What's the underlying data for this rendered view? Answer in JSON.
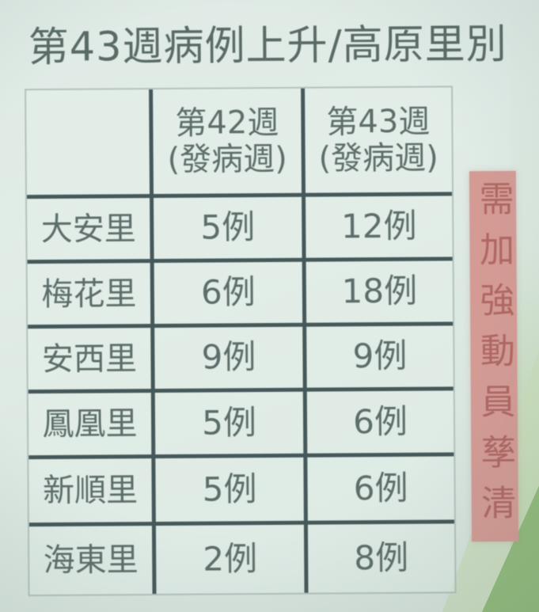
{
  "title": "第43週病例上升/高原里別",
  "table": {
    "header": {
      "col1": "",
      "col2": {
        "line1": "第42週",
        "line2": "(發病週)"
      },
      "col3": {
        "line1": "第43週",
        "line2": "(發病週)"
      }
    },
    "rows": [
      {
        "name": "大安里",
        "w42": "5例",
        "w43": "12例"
      },
      {
        "name": "梅花里",
        "w42": "6例",
        "w43": "18例"
      },
      {
        "name": "安西里",
        "w42": "9例",
        "w43": "9例"
      },
      {
        "name": "鳳凰里",
        "w42": "5例",
        "w43": "6例"
      },
      {
        "name": "新順里",
        "w42": "5例",
        "w43": "6例"
      },
      {
        "name": "海東里",
        "w42": "2例",
        "w43": "8例"
      }
    ]
  },
  "side_banner": {
    "text": "需加強動員孳清"
  },
  "chart_data": {
    "type": "table",
    "title": "第43週病例上升/高原里別",
    "categories": [
      "大安里",
      "梅花里",
      "安西里",
      "鳳凰里",
      "新順里",
      "海東里"
    ],
    "series": [
      {
        "name": "第42週(發病週)",
        "values": [
          5,
          6,
          9,
          5,
          5,
          2
        ]
      },
      {
        "name": "第43週(發病週)",
        "values": [
          12,
          18,
          9,
          6,
          6,
          8
        ]
      }
    ]
  },
  "colors": {
    "background": "#dde8e3",
    "table_border_dark": "#46595a",
    "table_border_light": "#b3c2bd",
    "text": "#5d6e6a",
    "banner_bg": "#d49b95",
    "banner_text": "#b26f6a",
    "green_accent": "#93bc7d"
  }
}
